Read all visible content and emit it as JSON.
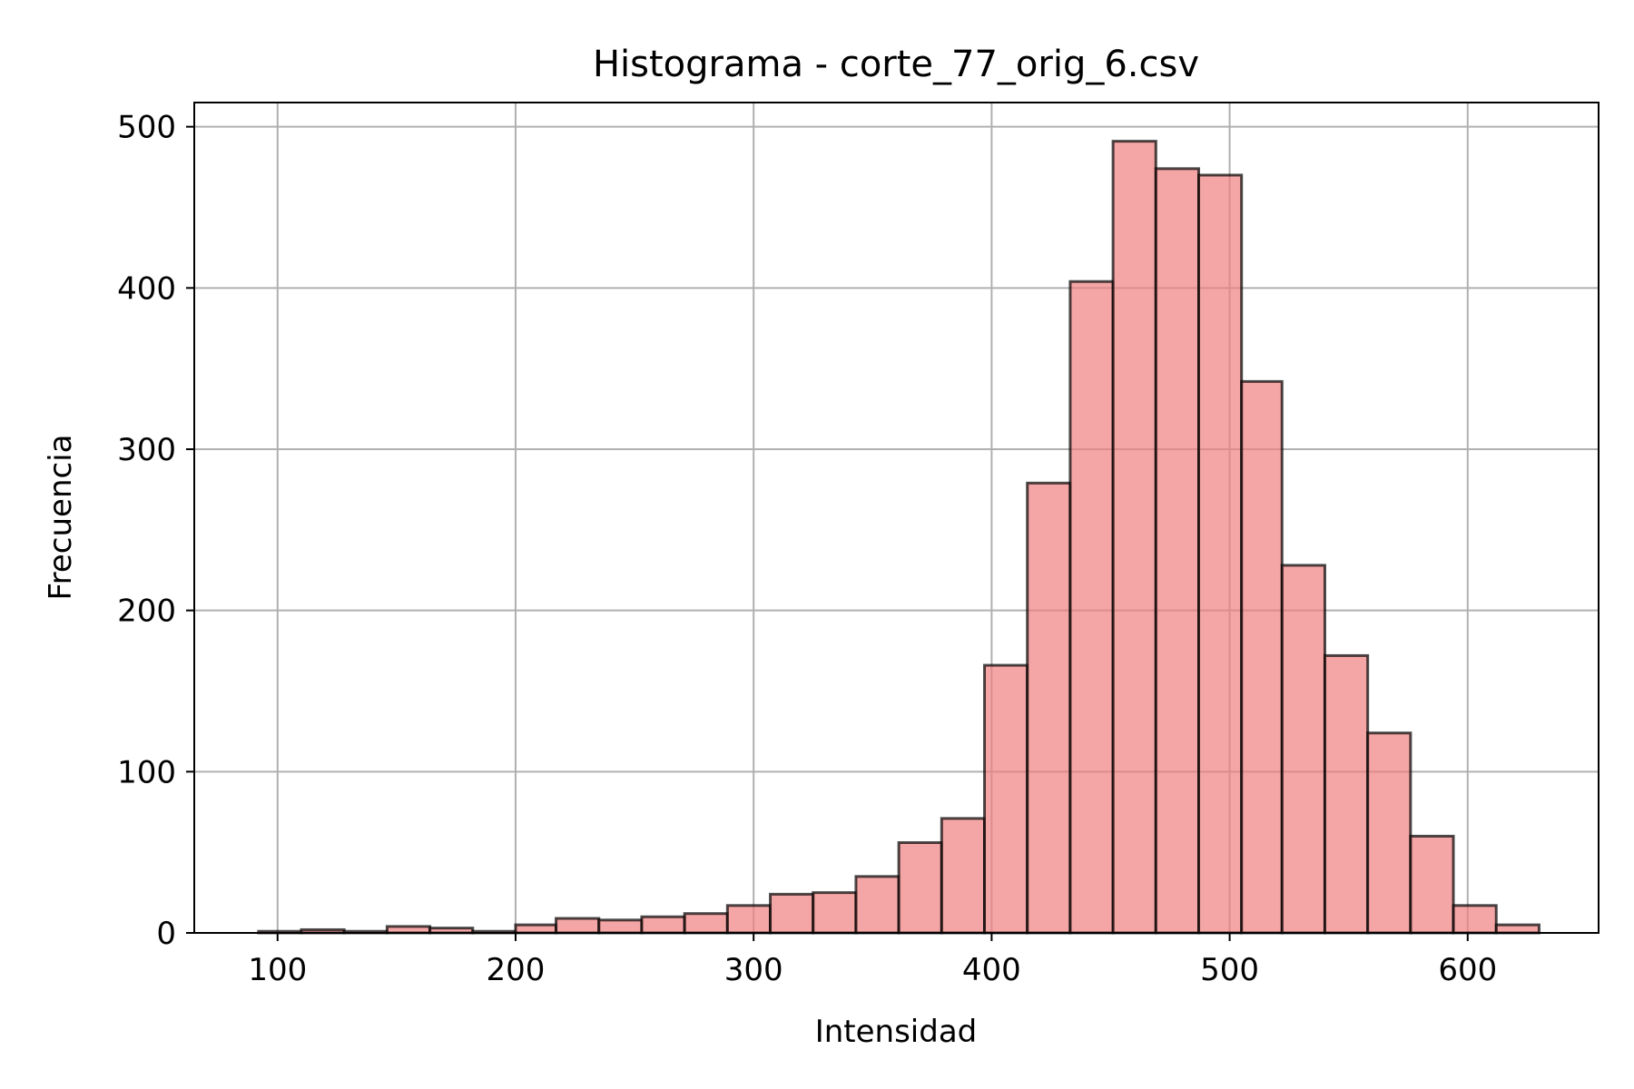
{
  "chart_data": {
    "type": "bar",
    "title": "Histograma - corte_77_orig_6.csv",
    "xlabel": "Intensidad",
    "ylabel": "Frecuencia",
    "xlim": [
      65,
      655
    ],
    "ylim": [
      0,
      515
    ],
    "xticks": [
      100,
      200,
      300,
      400,
      500,
      600
    ],
    "yticks": [
      0,
      100,
      200,
      300,
      400,
      500
    ],
    "grid": true,
    "colors": {
      "bar_fill": "#f08080",
      "bar_alpha": 0.7,
      "bar_edge": "#000000",
      "edge_alpha": 0.7
    },
    "bins": [
      {
        "x0": 92,
        "x1": 110,
        "value": 1
      },
      {
        "x0": 110,
        "x1": 128,
        "value": 2
      },
      {
        "x0": 128,
        "x1": 146,
        "value": 1
      },
      {
        "x0": 146,
        "x1": 164,
        "value": 4
      },
      {
        "x0": 164,
        "x1": 182,
        "value": 3
      },
      {
        "x0": 182,
        "x1": 200,
        "value": 1
      },
      {
        "x0": 200,
        "x1": 217,
        "value": 5
      },
      {
        "x0": 217,
        "x1": 235,
        "value": 9
      },
      {
        "x0": 235,
        "x1": 253,
        "value": 8
      },
      {
        "x0": 253,
        "x1": 271,
        "value": 10
      },
      {
        "x0": 271,
        "x1": 289,
        "value": 12
      },
      {
        "x0": 289,
        "x1": 307,
        "value": 17
      },
      {
        "x0": 307,
        "x1": 325,
        "value": 24
      },
      {
        "x0": 325,
        "x1": 343,
        "value": 25
      },
      {
        "x0": 343,
        "x1": 361,
        "value": 35
      },
      {
        "x0": 361,
        "x1": 379,
        "value": 56
      },
      {
        "x0": 379,
        "x1": 397,
        "value": 71
      },
      {
        "x0": 397,
        "x1": 415,
        "value": 166
      },
      {
        "x0": 415,
        "x1": 433,
        "value": 279
      },
      {
        "x0": 433,
        "x1": 451,
        "value": 404
      },
      {
        "x0": 451,
        "x1": 469,
        "value": 491
      },
      {
        "x0": 469,
        "x1": 487,
        "value": 474
      },
      {
        "x0": 487,
        "x1": 505,
        "value": 470
      },
      {
        "x0": 505,
        "x1": 522,
        "value": 342
      },
      {
        "x0": 522,
        "x1": 540,
        "value": 228
      },
      {
        "x0": 540,
        "x1": 558,
        "value": 172
      },
      {
        "x0": 558,
        "x1": 576,
        "value": 124
      },
      {
        "x0": 576,
        "x1": 594,
        "value": 60
      },
      {
        "x0": 594,
        "x1": 612,
        "value": 17
      },
      {
        "x0": 612,
        "x1": 630,
        "value": 5
      }
    ]
  }
}
